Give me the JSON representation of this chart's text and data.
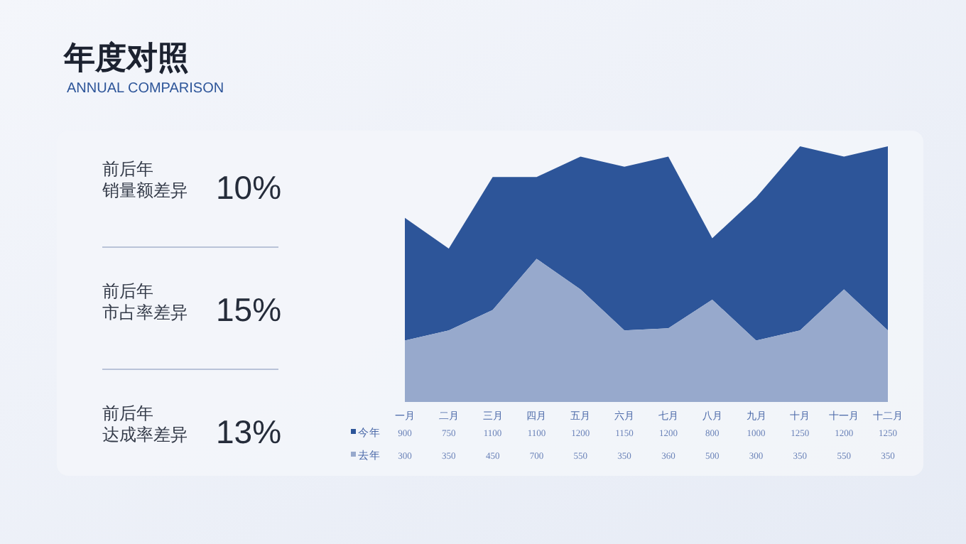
{
  "chart_data": [
    {
      "type": "other",
      "title": "年度对照",
      "subtitle": "ANNUAL COMPARISON",
      "annotations": [
        "前后年",
        "销量额差异",
        "10%",
        "前后年",
        "市占率差异",
        "15%",
        "前后年",
        "达成率差异",
        "13%"
      ]
    },
    {
      "type": "area",
      "categories": [
        "一月",
        "二月",
        "三月",
        "四月",
        "五月",
        "六月",
        "七月",
        "八月",
        "九月",
        "十月",
        "十一月",
        "十二月"
      ],
      "data_labels": true,
      "legend": "left",
      "stacked": false,
      "series": [
        {
          "name": "去年",
          "color": "#97a9cc",
          "values": [
            300,
            350,
            450,
            700,
            550,
            350,
            360,
            500,
            300,
            350,
            550,
            350
          ]
        },
        {
          "name": "今年",
          "color": "#2d5599",
          "values": [
            900,
            750,
            1100,
            1100,
            1200,
            1150,
            1200,
            800,
            1000,
            1250,
            1200,
            1250
          ]
        }
      ]
    }
  ]
}
